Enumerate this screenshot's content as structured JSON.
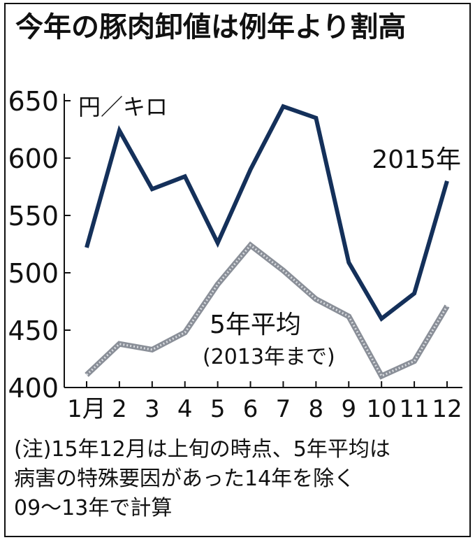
{
  "chart_data": {
    "type": "line",
    "title": "今年の豚肉卸値は例年より割高",
    "ylabel": "円／キロ",
    "categories": [
      "1月",
      "2",
      "3",
      "4",
      "5",
      "6",
      "7",
      "8",
      "9",
      "10",
      "11",
      "12"
    ],
    "ylim": [
      400,
      650
    ],
    "yticks": [
      400,
      450,
      500,
      550,
      600,
      650
    ],
    "series": [
      {
        "name": "2015年",
        "color": "#14305a",
        "values": [
          522,
          624,
          573,
          584,
          526,
          590,
          645,
          635,
          509,
          460,
          482,
          580
        ]
      },
      {
        "name": "5年平均",
        "name_sub": "(2013年まで)",
        "color": "#8a8f98",
        "values": [
          411,
          438,
          433,
          448,
          490,
          524,
          502,
          477,
          462,
          410,
          423,
          471
        ]
      }
    ],
    "note_lines": [
      "(注)15年12月は上旬の時点、5年平均は",
      "病害の特殊要因があった14年を除く",
      "09～13年で計算"
    ]
  }
}
